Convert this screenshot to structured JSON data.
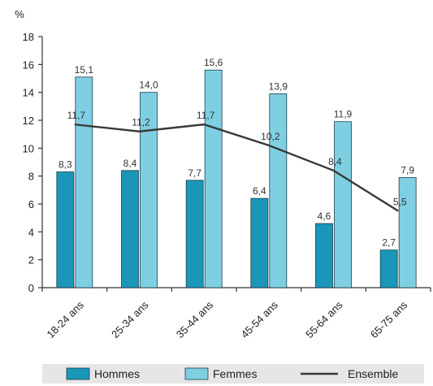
{
  "chart_data": {
    "type": "bar",
    "ylabel": "%",
    "ylim": [
      0,
      18
    ],
    "yticks": [
      "0",
      "2",
      "4",
      "6",
      "8",
      "10",
      "12",
      "14",
      "16",
      "18"
    ],
    "grid": false,
    "legend_position": "bottom",
    "categories": [
      "18-24 ans",
      "25-34 ans",
      "35-44 ans",
      "45-54 ans",
      "55-64 ans",
      "65-75 ans"
    ],
    "series": [
      {
        "name": "Hommes",
        "type": "bar",
        "color": "#1a96b8",
        "values": [
          8.3,
          8.4,
          7.7,
          6.4,
          4.6,
          2.7
        ],
        "labels": [
          "8,3",
          "8,4",
          "7,7",
          "6,4",
          "4,6",
          "2,7"
        ]
      },
      {
        "name": "Femmes",
        "type": "bar",
        "color": "#7fcfe3",
        "values": [
          15.1,
          14.0,
          15.6,
          13.9,
          11.9,
          7.9
        ],
        "labels": [
          "15,1",
          "14,0",
          "15,6",
          "13,9",
          "11,9",
          "7,9"
        ]
      },
      {
        "name": "Ensemble",
        "type": "line",
        "color": "#3a3a3a",
        "values": [
          11.7,
          11.2,
          11.7,
          10.2,
          8.4,
          5.5
        ],
        "labels": [
          "11,7",
          "11,2",
          "11,7",
          "10,2",
          "8,4",
          "5,5"
        ]
      }
    ],
    "legend_background": "#e6e6e6",
    "bar_stroke": "#1f3d4a"
  }
}
